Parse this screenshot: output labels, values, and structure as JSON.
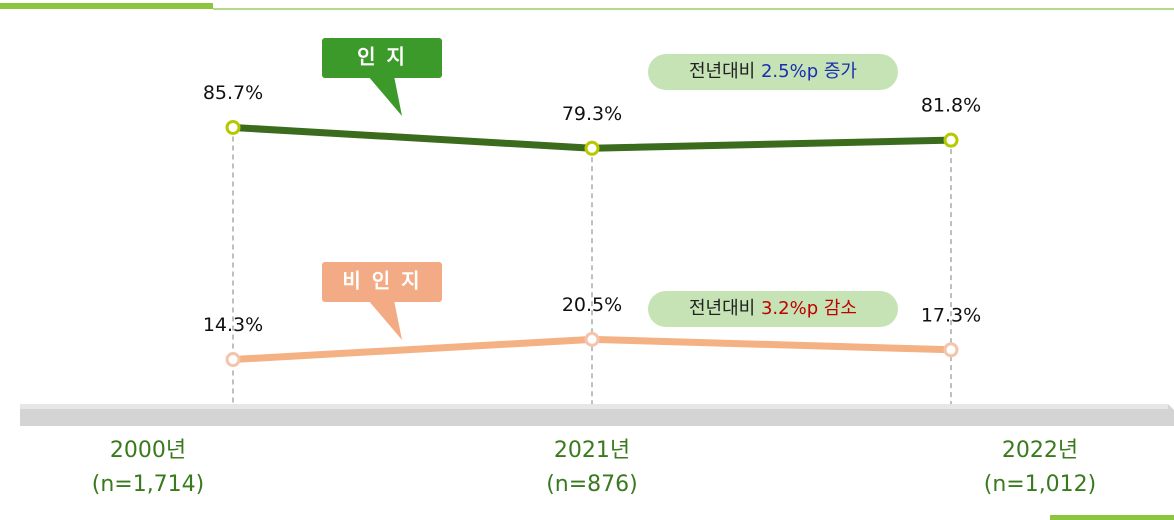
{
  "chart_data": {
    "type": "line",
    "categories": [
      "2000년",
      "2021년",
      "2022년"
    ],
    "sample_sizes": [
      "(n=1,714)",
      "(n=876)",
      "(n=1,012)"
    ],
    "ylim": [
      0,
      100
    ],
    "series": [
      {
        "name": "인 지",
        "color": "#3b6b1c",
        "marker_color": "#b6c900",
        "label_color": "#3c9a2a",
        "values": [
          85.7,
          79.3,
          81.8
        ],
        "value_labels": [
          "85.7%",
          "79.3%",
          "81.8%"
        ]
      },
      {
        "name": "비 인 지",
        "color": "#f4b183",
        "marker_color": "#f4c4ac",
        "label_color": "#f3ab85",
        "values": [
          14.3,
          20.5,
          17.3
        ],
        "value_labels": [
          "14.3%",
          "20.5%",
          "17.3%"
        ]
      }
    ],
    "annotations": [
      {
        "prefix": "전년대비",
        "highlight": "2.5%p 증가",
        "color": "#1a2fb0"
      },
      {
        "prefix": "전년대비",
        "highlight": "3.2%p 감소",
        "color": "#c00000"
      }
    ]
  }
}
